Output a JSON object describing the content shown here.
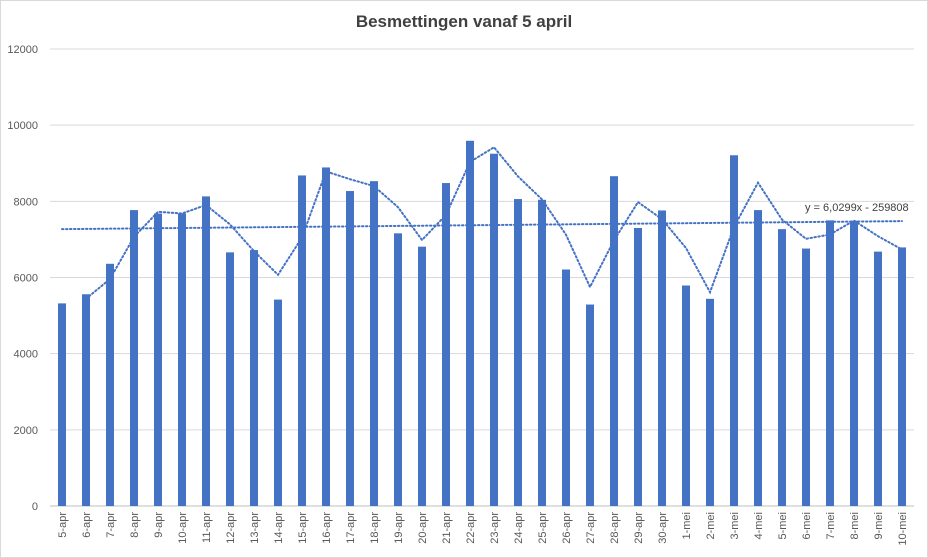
{
  "chart_data": {
    "type": "bar",
    "title": "Besmettingen vanaf 5 april",
    "xlabel": "",
    "ylabel": "",
    "ylim": [
      0,
      12000
    ],
    "yticks": [
      0,
      2000,
      4000,
      6000,
      8000,
      10000,
      12000
    ],
    "grid": true,
    "legend": "none",
    "bar_color": "#4472c4",
    "categories": [
      "5-apr",
      "6-apr",
      "7-apr",
      "8-apr",
      "9-apr",
      "10-apr",
      "11-apr",
      "12-apr",
      "13-apr",
      "14-apr",
      "15-apr",
      "16-apr",
      "17-apr",
      "18-apr",
      "19-apr",
      "20-apr",
      "21-apr",
      "22-apr",
      "23-apr",
      "24-apr",
      "25-apr",
      "26-apr",
      "27-apr",
      "28-apr",
      "29-apr",
      "30-apr",
      "1-mei",
      "2-mei",
      "3-mei",
      "4-mei",
      "5-mei",
      "6-mei",
      "7-mei",
      "8-mei",
      "9-mei",
      "10-mei"
    ],
    "series": [
      {
        "values": [
          5320,
          5560,
          6360,
          7770,
          7680,
          7680,
          8130,
          6660,
          6720,
          5420,
          8680,
          8890,
          8270,
          8530,
          7160,
          6810,
          8480,
          9590,
          9250,
          8060,
          8040,
          6210,
          5290,
          8660,
          7300,
          7760,
          5790,
          5440,
          9210,
          7770,
          7270,
          6760,
          7500,
          7490,
          6680,
          6790
        ]
      }
    ],
    "moving_average": {
      "period": 2,
      "style": "dotted",
      "color": "#4472c4"
    },
    "trendline": {
      "type": "linear",
      "style": "dotted",
      "color": "#4472c4",
      "equation": "y = 6,0299x - 259808",
      "start_value": 7270,
      "end_value": 7480
    }
  }
}
